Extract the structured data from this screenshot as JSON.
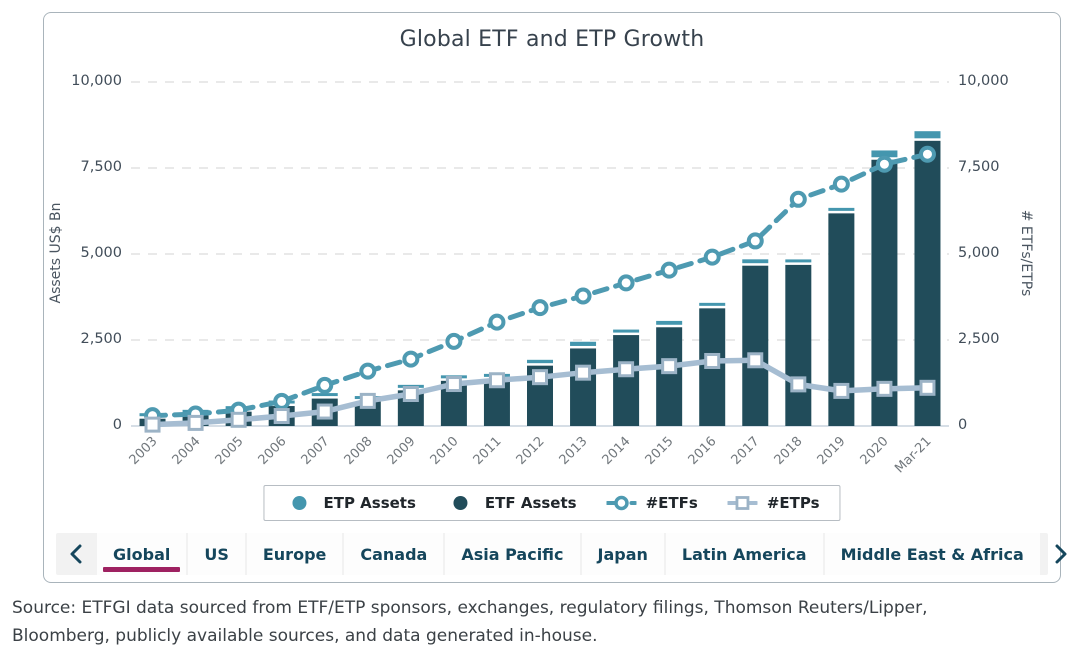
{
  "title": "Global ETF and ETP Growth",
  "colors": {
    "etp_assets": "#4496ae",
    "etf_assets": "#214c5a",
    "etfs_line": "#4e9ab1",
    "etps_line": "#a6bdd2",
    "square_marker_stroke": "#9cb3c6",
    "grid": "#e2e2e2",
    "axis_baseline": "#c9d4dd",
    "tab_text": "#15465c",
    "active_tab_underline": "#9e2161"
  },
  "chart_data": {
    "type": "combo",
    "title": "Global ETF and ETP Growth",
    "categories": [
      "2003",
      "2004",
      "2005",
      "2006",
      "2007",
      "2008",
      "2009",
      "2010",
      "2011",
      "2012",
      "2013",
      "2014",
      "2015",
      "2016",
      "2017",
      "2018",
      "2019",
      "2020",
      "Mar-21"
    ],
    "series": [
      {
        "name": "ETP Assets",
        "type": "bar",
        "stack": "assets",
        "axis": "left",
        "color": "#4496ae",
        "values": [
          5,
          8,
          12,
          20,
          60,
          65,
          95,
          130,
          145,
          170,
          195,
          160,
          185,
          95,
          185,
          115,
          110,
          270,
          280
        ]
      },
      {
        "name": "ETF Assets",
        "type": "bar",
        "stack": "assets",
        "axis": "left",
        "color": "#214c5a",
        "values": [
          212,
          310,
          417,
          580,
          797,
          711,
          1036,
          1313,
          1355,
          1754,
          2254,
          2643,
          2870,
          3420,
          4660,
          4683,
          6181,
          7740,
          8290
        ]
      },
      {
        "name": "#ETFs",
        "type": "line",
        "dash": "dashed",
        "marker": "circle",
        "axis": "right",
        "color": "#4e9ab1",
        "values": [
          300,
          350,
          460,
          715,
          1180,
          1595,
          1945,
          2460,
          3020,
          3440,
          3780,
          4160,
          4530,
          4910,
          5380,
          6590,
          7030,
          7610,
          7900
        ]
      },
      {
        "name": "#ETPs",
        "type": "line",
        "dash": "solid",
        "marker": "square",
        "axis": "right",
        "color": "#a6bdd2",
        "values": [
          40,
          90,
          180,
          290,
          420,
          730,
          930,
          1220,
          1330,
          1420,
          1550,
          1650,
          1740,
          1890,
          1910,
          1210,
          1020,
          1080,
          1110
        ]
      }
    ],
    "ylabel_left": "Assets US$ Bn",
    "ylabel_right": "# ETFs/ETPs",
    "ylim_left": [
      0,
      10000
    ],
    "ylim_right": [
      0,
      10000
    ],
    "yticks": [
      0,
      2500,
      5000,
      7500,
      10000
    ],
    "grid": "horizontal-dashed",
    "legend_position": "bottom"
  },
  "legend": {
    "items": [
      {
        "label": "ETP Assets",
        "marker": "filled-circle",
        "color": "#4496ae"
      },
      {
        "label": "ETF Assets",
        "marker": "filled-circle",
        "color": "#214c5a"
      },
      {
        "label": "#ETFs",
        "marker": "dashed-line-hollow-circle",
        "color": "#4e9ab1"
      },
      {
        "label": "#ETPs",
        "marker": "line-hollow-square",
        "color": "#a6bdd2"
      }
    ]
  },
  "tabs": {
    "prev_icon": "chevron-left",
    "next_icon": "chevron-right",
    "active": "Global",
    "items": [
      "Global",
      "US",
      "Europe",
      "Canada",
      "Asia Pacific",
      "Japan",
      "Latin America",
      "Middle East & Africa"
    ]
  },
  "source": {
    "line1": "Source: ETFGI data sourced from ETF/ETP sponsors, exchanges, regulatory filings, Thomson Reuters/Lipper,",
    "line2": "Bloomberg, publicly available sources, and data generated in-house."
  }
}
